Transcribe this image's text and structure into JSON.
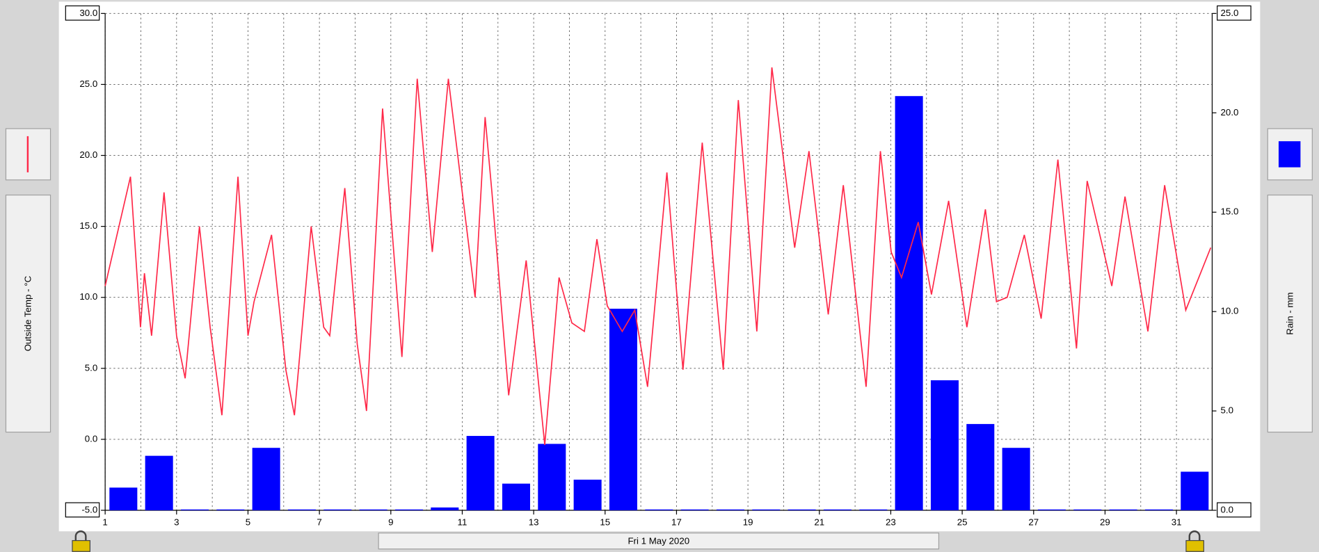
{
  "chart_data": {
    "type": "combo",
    "date_label": "Fri 1 May 2020",
    "xlim": [
      1,
      32
    ],
    "xticks": [
      1,
      3,
      5,
      7,
      9,
      11,
      13,
      15,
      17,
      19,
      21,
      23,
      25,
      27,
      29,
      31
    ],
    "ylim": [
      -5,
      30
    ],
    "yticks": [
      {
        "value": -5,
        "label": "-5.0"
      },
      {
        "value": 0,
        "label": "0.0"
      },
      {
        "value": 5,
        "label": "5.0"
      },
      {
        "value": 10,
        "label": "10.0"
      },
      {
        "value": 15,
        "label": "15.0"
      },
      {
        "value": 20,
        "label": "20.0"
      },
      {
        "value": 25,
        "label": "25.0"
      },
      {
        "value": 30,
        "label": "30.0"
      }
    ],
    "y2lim": [
      0,
      25
    ],
    "y2ticks": [
      {
        "value": 0,
        "label": "0.0"
      },
      {
        "value": 5,
        "label": "5.0"
      },
      {
        "value": 10,
        "label": "10.0"
      },
      {
        "value": 15,
        "label": "15.0"
      },
      {
        "value": 20,
        "label": "20.0"
      },
      {
        "value": 25,
        "label": "25.0"
      }
    ],
    "grid": true,
    "series": [
      {
        "name": "Outside Temp - °C",
        "type": "line",
        "color": "#ff2848",
        "x": [
          1,
          1.71,
          1.99,
          2.1,
          2.3,
          2.65,
          3.0,
          3.24,
          3.64,
          3.94,
          4.27,
          4.72,
          5.0,
          5.17,
          5.66,
          6.06,
          6.3,
          6.77,
          7.12,
          7.29,
          7.71,
          8.06,
          8.32,
          8.77,
          9.31,
          9.74,
          10.16,
          10.61,
          11.36,
          11.64,
          11.83,
          12.3,
          12.79,
          13.31,
          13.71,
          14.07,
          14.42,
          14.77,
          15.06,
          15.48,
          15.83,
          16.19,
          16.73,
          17.18,
          17.72,
          18.31,
          18.73,
          19.25,
          19.67,
          20.31,
          20.71,
          21.25,
          21.67,
          22.31,
          22.71,
          23.01,
          23.3,
          23.77,
          24.14,
          24.62,
          25.13,
          25.65,
          25.96,
          26.26,
          26.74,
          27.21,
          27.68,
          28.2,
          28.5,
          29.19,
          29.56,
          30.2,
          30.67,
          31.26,
          31.96
        ],
        "values": [
          10.8,
          18.5,
          7.9,
          11.7,
          7.3,
          17.4,
          7.3,
          4.3,
          15.0,
          7.9,
          1.7,
          18.5,
          7.3,
          9.7,
          14.4,
          4.9,
          1.7,
          15.0,
          7.9,
          7.3,
          17.7,
          6.7,
          2.0,
          23.3,
          5.8,
          25.4,
          13.2,
          25.4,
          10.0,
          22.7,
          17.4,
          3.1,
          12.6,
          -0.4,
          11.4,
          8.2,
          7.6,
          14.1,
          9.4,
          7.6,
          9.1,
          3.7,
          18.8,
          4.9,
          20.9,
          4.9,
          23.9,
          7.6,
          26.2,
          13.5,
          20.3,
          8.8,
          17.9,
          3.7,
          20.3,
          13.2,
          11.4,
          15.3,
          10.2,
          16.8,
          7.9,
          16.2,
          9.7,
          10.0,
          14.4,
          8.5,
          19.7,
          6.4,
          18.2,
          10.8,
          17.1,
          7.6,
          17.9,
          9.1,
          13.5
        ]
      },
      {
        "name": "Rain - mm",
        "type": "bar",
        "axis": "y2",
        "color": "#0000ff",
        "x": [
          1,
          2,
          3,
          4,
          5,
          6,
          7,
          8,
          9,
          10,
          11,
          12,
          13,
          14,
          15,
          16,
          17,
          18,
          19,
          20,
          21,
          22,
          23,
          24,
          25,
          26,
          27,
          28,
          29,
          30,
          31
        ],
        "values": [
          1.1,
          2.7,
          0,
          0,
          3.1,
          0,
          0,
          0,
          0,
          0.1,
          3.7,
          1.3,
          3.3,
          1.5,
          10.1,
          0,
          0,
          0,
          0,
          0,
          0,
          0,
          20.8,
          6.5,
          4.3,
          3.1,
          0,
          0,
          0,
          0,
          1.9
        ]
      }
    ]
  }
}
